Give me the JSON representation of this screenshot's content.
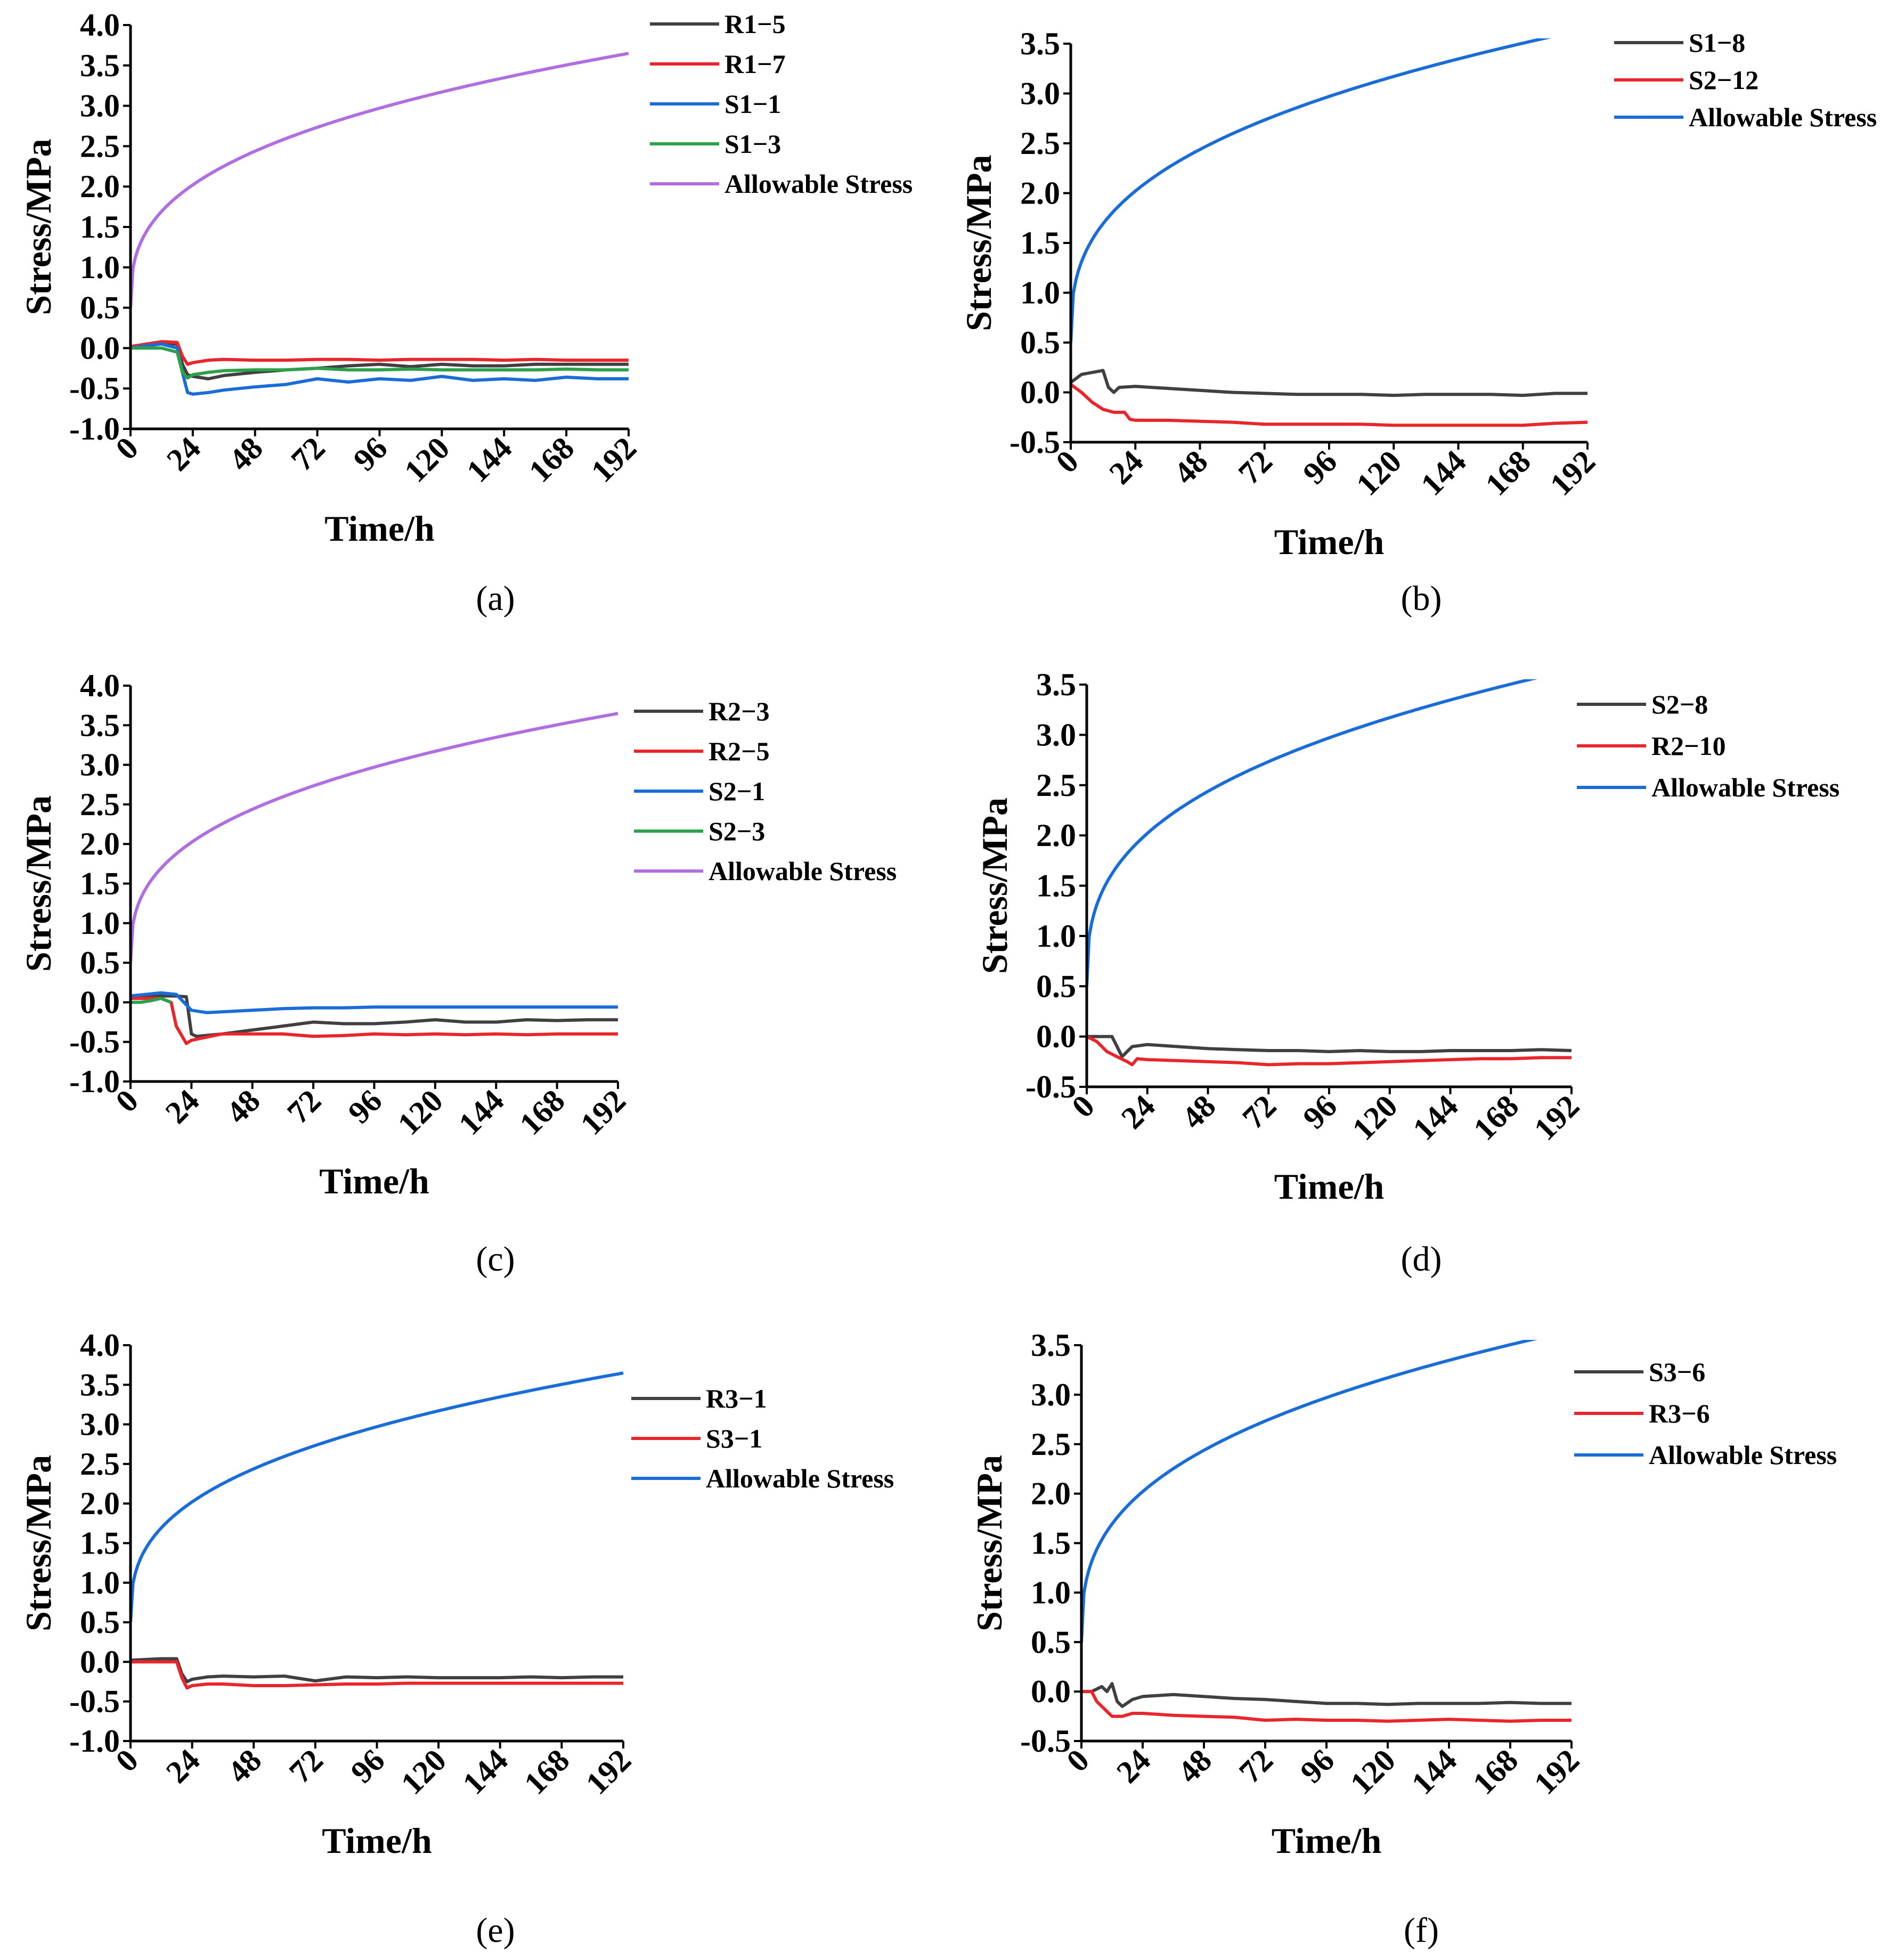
{
  "chart_data": [
    {
      "type": "line",
      "caption": "(a)",
      "xlabel": "Time/h",
      "ylabel": "Stress/MPa",
      "xlim": [
        0,
        192
      ],
      "ylim": [
        -1.0,
        4.0
      ],
      "xticks": [
        "0",
        "24",
        "48",
        "72",
        "96",
        "120",
        "144",
        "168",
        "192"
      ],
      "yticks": [
        "4.0",
        "3.5",
        "3.0",
        "2.5",
        "2.0",
        "1.5",
        "1.0",
        "0.5",
        "0.0",
        "-0.5",
        "-1.0"
      ],
      "legend_position": "top-right",
      "series": [
        {
          "name": "R1−5",
          "color": "#404040",
          "x": [
            0,
            6,
            12,
            18,
            20,
            22,
            24,
            30,
            36,
            48,
            60,
            72,
            84,
            96,
            108,
            120,
            132,
            144,
            156,
            168,
            180,
            192
          ],
          "y": [
            0.0,
            0.05,
            0.05,
            0.05,
            -0.2,
            -0.33,
            -0.35,
            -0.38,
            -0.34,
            -0.3,
            -0.27,
            -0.25,
            -0.22,
            -0.2,
            -0.23,
            -0.2,
            -0.22,
            -0.22,
            -0.2,
            -0.2,
            -0.2,
            -0.2
          ]
        },
        {
          "name": "R1−7",
          "color": "#e8262b",
          "x": [
            0,
            6,
            12,
            18,
            20,
            22,
            24,
            30,
            36,
            48,
            60,
            72,
            84,
            96,
            108,
            120,
            132,
            144,
            156,
            168,
            180,
            192
          ],
          "y": [
            0.02,
            0.05,
            0.08,
            0.07,
            -0.1,
            -0.2,
            -0.18,
            -0.15,
            -0.14,
            -0.15,
            -0.15,
            -0.14,
            -0.14,
            -0.15,
            -0.14,
            -0.14,
            -0.14,
            -0.15,
            -0.14,
            -0.15,
            -0.15,
            -0.15
          ]
        },
        {
          "name": "S1−1",
          "color": "#1a6dd6",
          "x": [
            0,
            6,
            12,
            18,
            20,
            22,
            24,
            30,
            36,
            48,
            60,
            72,
            84,
            96,
            108,
            120,
            132,
            144,
            156,
            168,
            180,
            192
          ],
          "y": [
            0.0,
            0.03,
            0.05,
            0.0,
            -0.3,
            -0.55,
            -0.57,
            -0.55,
            -0.52,
            -0.48,
            -0.45,
            -0.38,
            -0.42,
            -0.38,
            -0.4,
            -0.35,
            -0.4,
            -0.38,
            -0.4,
            -0.36,
            -0.38,
            -0.38
          ]
        },
        {
          "name": "S1−3",
          "color": "#2ca04a",
          "x": [
            0,
            6,
            12,
            18,
            20,
            22,
            24,
            30,
            36,
            48,
            60,
            72,
            84,
            96,
            108,
            120,
            132,
            144,
            156,
            168,
            180,
            192
          ],
          "y": [
            0.0,
            0.0,
            0.0,
            -0.05,
            -0.3,
            -0.37,
            -0.33,
            -0.3,
            -0.28,
            -0.27,
            -0.27,
            -0.25,
            -0.27,
            -0.27,
            -0.26,
            -0.27,
            -0.27,
            -0.27,
            -0.27,
            -0.26,
            -0.27,
            -0.27
          ]
        },
        {
          "name": "Allowable Stress",
          "color": "#b06fe0",
          "curve": "allowable"
        }
      ]
    },
    {
      "type": "line",
      "caption": "(b)",
      "xlabel": "Time/h",
      "ylabel": "Stress/MPa",
      "xlim": [
        0,
        192
      ],
      "ylim": [
        -0.5,
        3.5
      ],
      "xticks": [
        "0",
        "24",
        "48",
        "72",
        "96",
        "120",
        "144",
        "168",
        "192"
      ],
      "yticks": [
        "3.5",
        "3.0",
        "2.5",
        "2.0",
        "1.5",
        "1.0",
        "0.5",
        "0.0",
        "-0.5"
      ],
      "legend_position": "top-right",
      "series": [
        {
          "name": "S1−8",
          "color": "#404040",
          "x": [
            0,
            4,
            8,
            12,
            14,
            16,
            18,
            24,
            36,
            48,
            60,
            72,
            84,
            96,
            108,
            120,
            132,
            144,
            156,
            168,
            180,
            192
          ],
          "y": [
            0.1,
            0.18,
            0.2,
            0.22,
            0.05,
            0.0,
            0.05,
            0.06,
            0.04,
            0.02,
            0.0,
            -0.01,
            -0.02,
            -0.02,
            -0.02,
            -0.03,
            -0.02,
            -0.02,
            -0.02,
            -0.03,
            -0.01,
            -0.01
          ]
        },
        {
          "name": "S2−12",
          "color": "#e8262b",
          "x": [
            0,
            4,
            8,
            12,
            16,
            20,
            22,
            24,
            36,
            48,
            60,
            72,
            84,
            96,
            108,
            120,
            132,
            144,
            156,
            168,
            180,
            192
          ],
          "y": [
            0.08,
            0.0,
            -0.1,
            -0.17,
            -0.2,
            -0.2,
            -0.27,
            -0.28,
            -0.28,
            -0.29,
            -0.3,
            -0.32,
            -0.32,
            -0.32,
            -0.32,
            -0.33,
            -0.33,
            -0.33,
            -0.33,
            -0.33,
            -0.31,
            -0.3
          ]
        },
        {
          "name": "Allowable Stress",
          "color": "#1a6dd6",
          "curve": "allowable"
        }
      ]
    },
    {
      "type": "line",
      "caption": "(c)",
      "xlabel": "Time/h",
      "ylabel": "Stress/MPa",
      "xlim": [
        0,
        192
      ],
      "ylim": [
        -1.0,
        4.0
      ],
      "xticks": [
        "0",
        "24",
        "48",
        "72",
        "96",
        "120",
        "144",
        "168",
        "192"
      ],
      "yticks": [
        "4.0",
        "3.5",
        "3.0",
        "2.5",
        "2.0",
        "1.5",
        "1.0",
        "0.5",
        "0.0",
        "-0.5",
        "-1.0"
      ],
      "legend_position": "top-right",
      "series": [
        {
          "name": "R2−3",
          "color": "#404040",
          "x": [
            0,
            6,
            12,
            18,
            22,
            24,
            26,
            36,
            48,
            60,
            72,
            84,
            96,
            108,
            120,
            132,
            144,
            156,
            168,
            180,
            192
          ],
          "y": [
            0.05,
            0.08,
            0.08,
            0.08,
            0.07,
            -0.4,
            -0.43,
            -0.4,
            -0.35,
            -0.3,
            -0.25,
            -0.27,
            -0.27,
            -0.25,
            -0.22,
            -0.25,
            -0.25,
            -0.22,
            -0.23,
            -0.22,
            -0.22
          ]
        },
        {
          "name": "R2−5",
          "color": "#e8262b",
          "x": [
            0,
            6,
            12,
            16,
            18,
            22,
            24,
            36,
            48,
            60,
            72,
            84,
            96,
            108,
            120,
            132,
            144,
            156,
            168,
            180,
            192
          ],
          "y": [
            0.05,
            0.05,
            0.05,
            0.0,
            -0.3,
            -0.52,
            -0.48,
            -0.4,
            -0.4,
            -0.4,
            -0.43,
            -0.42,
            -0.4,
            -0.41,
            -0.4,
            -0.41,
            -0.4,
            -0.41,
            -0.4,
            -0.4,
            -0.4
          ]
        },
        {
          "name": "S2−1",
          "color": "#1a6dd6",
          "x": [
            0,
            6,
            12,
            18,
            24,
            30,
            36,
            48,
            60,
            72,
            84,
            96,
            108,
            120,
            132,
            144,
            156,
            168,
            180,
            192
          ],
          "y": [
            0.08,
            0.1,
            0.12,
            0.1,
            -0.1,
            -0.13,
            -0.12,
            -0.1,
            -0.08,
            -0.07,
            -0.07,
            -0.06,
            -0.06,
            -0.06,
            -0.06,
            -0.06,
            -0.06,
            -0.06,
            -0.06,
            -0.06
          ]
        },
        {
          "name": "S2−3",
          "color": "#2ca04a",
          "x": [
            0,
            4,
            8,
            12,
            16
          ],
          "y": [
            0.0,
            0.0,
            0.02,
            0.05,
            0.0
          ]
        },
        {
          "name": "Allowable Stress",
          "color": "#b06fe0",
          "curve": "allowable"
        }
      ]
    },
    {
      "type": "line",
      "caption": "(d)",
      "xlabel": "Time/h",
      "ylabel": "Stress/MPa",
      "xlim": [
        0,
        192
      ],
      "ylim": [
        -0.5,
        3.5
      ],
      "xticks": [
        "0",
        "24",
        "48",
        "72",
        "96",
        "120",
        "144",
        "168",
        "192"
      ],
      "yticks": [
        "3.5",
        "3.0",
        "2.5",
        "2.0",
        "1.5",
        "1.0",
        "0.5",
        "0.0",
        "-0.5"
      ],
      "legend_position": "top-right",
      "series": [
        {
          "name": "S2−8",
          "color": "#404040",
          "x": [
            0,
            6,
            10,
            12,
            14,
            16,
            18,
            24,
            36,
            48,
            60,
            72,
            84,
            96,
            108,
            120,
            132,
            144,
            156,
            168,
            180,
            192
          ],
          "y": [
            0.0,
            0.0,
            0.0,
            -0.1,
            -0.2,
            -0.15,
            -0.1,
            -0.08,
            -0.1,
            -0.12,
            -0.13,
            -0.14,
            -0.14,
            -0.15,
            -0.14,
            -0.15,
            -0.15,
            -0.14,
            -0.14,
            -0.14,
            -0.13,
            -0.14
          ]
        },
        {
          "name": "R2−10",
          "color": "#e8262b",
          "x": [
            0,
            4,
            8,
            12,
            16,
            18,
            20,
            24,
            36,
            48,
            60,
            72,
            84,
            96,
            108,
            120,
            132,
            144,
            156,
            168,
            180,
            192
          ],
          "y": [
            0.0,
            -0.05,
            -0.15,
            -0.2,
            -0.25,
            -0.28,
            -0.22,
            -0.23,
            -0.24,
            -0.25,
            -0.26,
            -0.28,
            -0.27,
            -0.27,
            -0.26,
            -0.25,
            -0.24,
            -0.23,
            -0.22,
            -0.22,
            -0.21,
            -0.21
          ]
        },
        {
          "name": "Allowable Stress",
          "color": "#1a6dd6",
          "curve": "allowable"
        }
      ]
    },
    {
      "type": "line",
      "caption": "(e)",
      "xlabel": "Time/h",
      "ylabel": "Stress/MPa",
      "xlim": [
        0,
        192
      ],
      "ylim": [
        -1.0,
        4.0
      ],
      "xticks": [
        "0",
        "24",
        "48",
        "72",
        "96",
        "120",
        "144",
        "168",
        "192"
      ],
      "yticks": [
        "4.0",
        "3.5",
        "3.0",
        "2.5",
        "2.0",
        "1.5",
        "1.0",
        "0.5",
        "0.0",
        "-0.5",
        "-1.0"
      ],
      "legend_position": "top-right",
      "series": [
        {
          "name": "R3−1",
          "color": "#404040",
          "x": [
            0,
            6,
            12,
            18,
            20,
            22,
            24,
            30,
            36,
            48,
            60,
            72,
            84,
            96,
            108,
            120,
            132,
            144,
            156,
            168,
            180,
            192
          ],
          "y": [
            0.02,
            0.03,
            0.04,
            0.04,
            -0.15,
            -0.25,
            -0.22,
            -0.19,
            -0.18,
            -0.19,
            -0.18,
            -0.24,
            -0.19,
            -0.2,
            -0.19,
            -0.2,
            -0.2,
            -0.2,
            -0.19,
            -0.2,
            -0.19,
            -0.19
          ]
        },
        {
          "name": "S3−1",
          "color": "#e8262b",
          "x": [
            0,
            6,
            12,
            18,
            20,
            22,
            24,
            30,
            36,
            48,
            60,
            72,
            84,
            96,
            108,
            120,
            132,
            144,
            156,
            168,
            180,
            192
          ],
          "y": [
            0.0,
            0.0,
            0.0,
            0.0,
            -0.2,
            -0.33,
            -0.3,
            -0.28,
            -0.28,
            -0.3,
            -0.3,
            -0.29,
            -0.28,
            -0.28,
            -0.27,
            -0.27,
            -0.27,
            -0.27,
            -0.27,
            -0.27,
            -0.27,
            -0.27
          ]
        },
        {
          "name": "Allowable Stress",
          "color": "#1a6dd6",
          "curve": "allowable"
        }
      ]
    },
    {
      "type": "line",
      "caption": "(f)",
      "xlabel": "Time/h",
      "ylabel": "Stress/MPa",
      "xlim": [
        0,
        192
      ],
      "ylim": [
        -0.5,
        3.5
      ],
      "xticks": [
        "0",
        "24",
        "48",
        "72",
        "96",
        "120",
        "144",
        "168",
        "192"
      ],
      "yticks": [
        "3.5",
        "3.0",
        "2.5",
        "2.0",
        "1.5",
        "1.0",
        "0.5",
        "0.0",
        "-0.5"
      ],
      "legend_position": "top-right",
      "series": [
        {
          "name": "S3−6",
          "color": "#404040",
          "x": [
            0,
            4,
            8,
            10,
            12,
            14,
            16,
            20,
            24,
            36,
            48,
            60,
            72,
            84,
            96,
            108,
            120,
            132,
            144,
            156,
            168,
            180,
            192
          ],
          "y": [
            0.0,
            0.0,
            0.05,
            0.0,
            0.08,
            -0.1,
            -0.15,
            -0.08,
            -0.05,
            -0.03,
            -0.05,
            -0.07,
            -0.08,
            -0.1,
            -0.12,
            -0.12,
            -0.13,
            -0.12,
            -0.12,
            -0.12,
            -0.11,
            -0.12,
            -0.12
          ]
        },
        {
          "name": "R3−6",
          "color": "#e8262b",
          "x": [
            0,
            4,
            6,
            8,
            10,
            12,
            16,
            20,
            24,
            36,
            48,
            60,
            72,
            84,
            96,
            108,
            120,
            132,
            144,
            156,
            168,
            180,
            192
          ],
          "y": [
            0.0,
            0.0,
            -0.1,
            -0.15,
            -0.2,
            -0.25,
            -0.25,
            -0.22,
            -0.22,
            -0.24,
            -0.25,
            -0.26,
            -0.29,
            -0.28,
            -0.29,
            -0.29,
            -0.3,
            -0.29,
            -0.28,
            -0.29,
            -0.3,
            -0.29,
            -0.29
          ]
        },
        {
          "name": "Allowable Stress",
          "color": "#1a6dd6",
          "curve": "allowable"
        }
      ]
    }
  ]
}
